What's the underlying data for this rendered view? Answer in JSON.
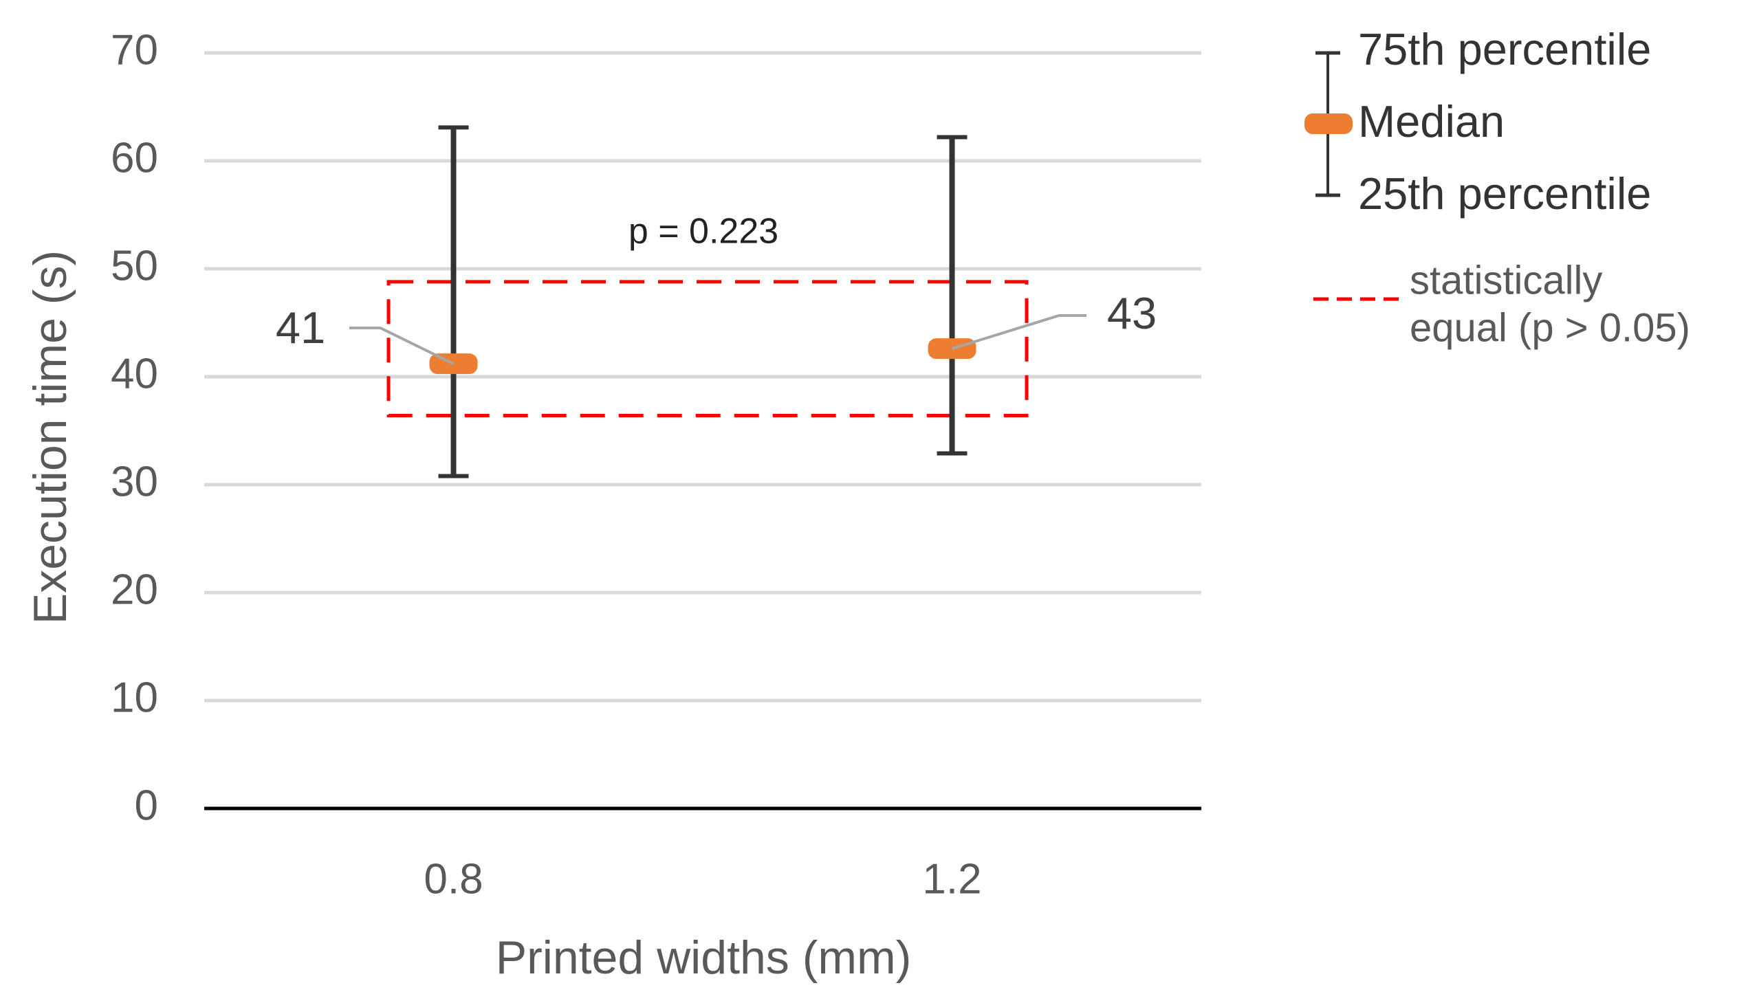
{
  "chart_data": {
    "type": "median_range",
    "x_label": "Printed widths (mm)",
    "y_label": "Execution time (s)",
    "categories": [
      "0.8",
      "1.2"
    ],
    "series": [
      {
        "name": "75th percentile",
        "color": "#333333",
        "values": [
          63.1,
          62.2
        ]
      },
      {
        "name": "Median",
        "color": "#ed7d31",
        "values": [
          41.2,
          42.6
        ],
        "value_labels": [
          "41",
          "43"
        ]
      },
      {
        "name": "25th percentile",
        "color": "#333333",
        "values": [
          30.8,
          32.9
        ]
      }
    ],
    "equal_region": {
      "label": [
        "statistically",
        "equal (p > 0.05)"
      ],
      "color": "#ff0000",
      "range": [
        36.4,
        48.8
      ]
    },
    "annotation": "p = 0.223",
    "ylim": [
      0,
      70
    ],
    "yticks": [
      0,
      10,
      20,
      30,
      40,
      50,
      60,
      70
    ],
    "grid": true
  }
}
